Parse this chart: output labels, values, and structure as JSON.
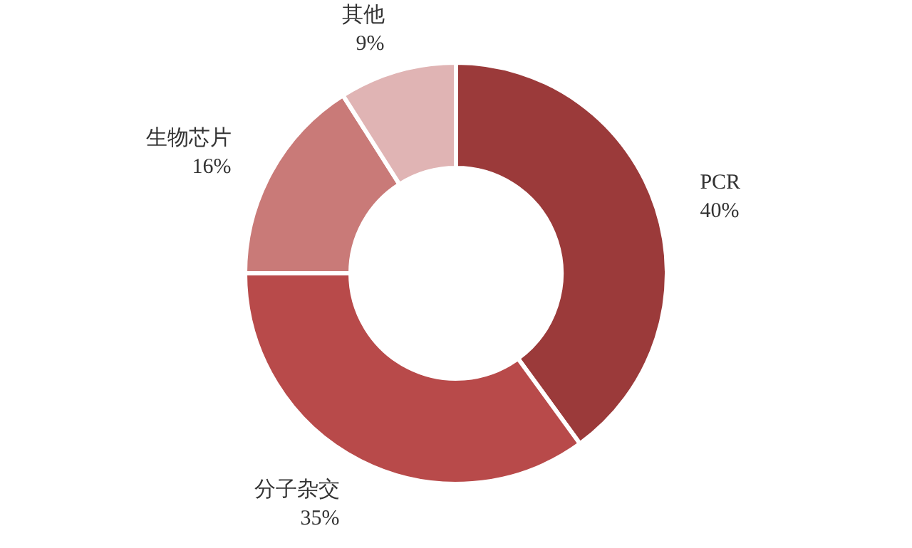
{
  "chart_data": {
    "type": "donut",
    "categories": [
      "PCR",
      "分子杂交",
      "生物芯片",
      "其他"
    ],
    "values": [
      40,
      35,
      16,
      9
    ],
    "value_labels": [
      "40%",
      "35%",
      "16%",
      "9%"
    ],
    "colors": [
      "#9b3a3a",
      "#b84a4a",
      "#c97a78",
      "#e0b4b4"
    ]
  }
}
